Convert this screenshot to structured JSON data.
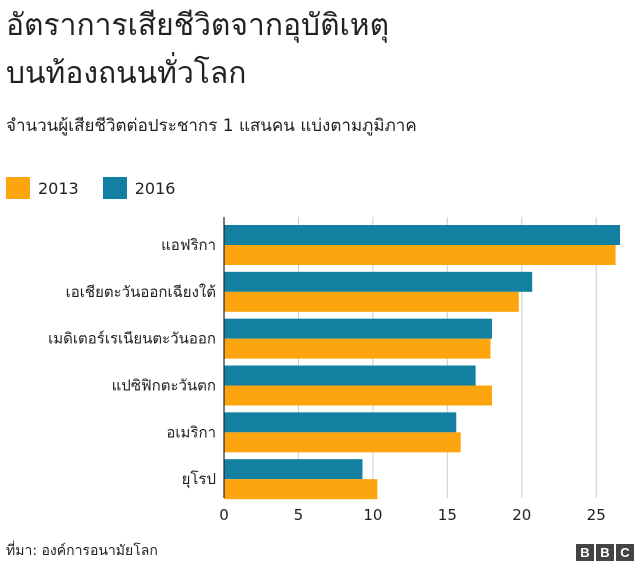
{
  "header": {
    "title_line1": "อัตราการเสียชีวิตจากอุบัติเหตุ",
    "title_line2": "บนท้องถนนทั่วโลก",
    "subtitle": "จำนวนผู้เสียชีวิตต่อประชากร 1 แสนคน แบ่งตามภูมิภาค"
  },
  "legend": [
    {
      "label": "2013",
      "color": "#fca50f"
    },
    {
      "label": "2016",
      "color": "#1380a1"
    }
  ],
  "footer": {
    "source": "ที่มา: องค์การอนามัยโลก",
    "logo": [
      "B",
      "B",
      "C"
    ]
  },
  "chart_data": {
    "type": "bar",
    "orientation": "horizontal",
    "title": "อัตราการเสียชีวิตจากอุบัติเหตุบนท้องถนนทั่วโลก",
    "subtitle": "จำนวนผู้เสียชีวิตต่อประชากร 1 แสนคน แบ่งตามภูมิภาค",
    "categories": [
      "แอฟริกา",
      "เอเชียตะวันออกเฉียงใต้",
      "เมดิเตอร์เรเนียนตะวันออก",
      "แปซิฟิกตะวันตก",
      "อเมริกา",
      "ยุโรป"
    ],
    "series": [
      {
        "name": "2016",
        "color": "#1380a1",
        "values": [
          26.6,
          20.7,
          18.0,
          16.9,
          15.6,
          9.3
        ]
      },
      {
        "name": "2013",
        "color": "#fca50f",
        "values": [
          26.3,
          19.8,
          17.9,
          18.0,
          15.9,
          10.3
        ]
      }
    ],
    "xlim": [
      0,
      27
    ],
    "xticks": [
      0,
      5,
      10,
      15,
      20,
      25
    ],
    "grid": true,
    "legend_position": "top-left",
    "source": "ที่มา: องค์การอนามัยโลก"
  }
}
